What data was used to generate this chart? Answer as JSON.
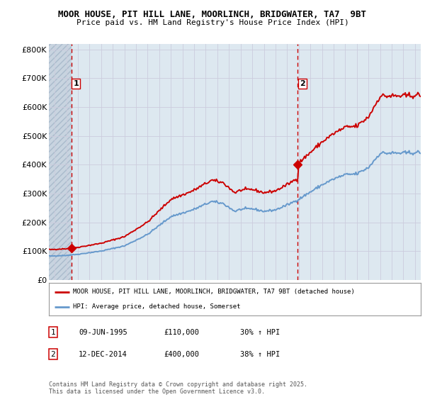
{
  "title": "MOOR HOUSE, PIT HILL LANE, MOORLINCH, BRIDGWATER, TA7  9BT",
  "subtitle": "Price paid vs. HM Land Registry's House Price Index (HPI)",
  "legend_label_red": "MOOR HOUSE, PIT HILL LANE, MOORLINCH, BRIDGWATER, TA7 9BT (detached house)",
  "legend_label_blue": "HPI: Average price, detached house, Somerset",
  "annotation1_label": "1",
  "annotation1_date": "09-JUN-1995",
  "annotation1_price": "£110,000",
  "annotation1_hpi": "30% ↑ HPI",
  "annotation2_label": "2",
  "annotation2_date": "12-DEC-2014",
  "annotation2_price": "£400,000",
  "annotation2_hpi": "38% ↑ HPI",
  "footnote": "Contains HM Land Registry data © Crown copyright and database right 2025.\nThis data is licensed under the Open Government Licence v3.0.",
  "purchase1_x": 1995.44,
  "purchase1_y": 110000,
  "purchase2_x": 2014.92,
  "purchase2_y": 400000,
  "xlim_left": 1993.5,
  "xlim_right": 2025.5,
  "ylim_bottom": 0,
  "ylim_top": 820000,
  "yticks": [
    0,
    100000,
    200000,
    300000,
    400000,
    500000,
    600000,
    700000,
    800000
  ],
  "ytick_labels": [
    "£0",
    "£100K",
    "£200K",
    "£300K",
    "£400K",
    "£500K",
    "£600K",
    "£700K",
    "£800K"
  ],
  "red_color": "#cc0000",
  "blue_color": "#6699cc",
  "grid_color": "#ccccdd",
  "bg_color": "#dde8f0",
  "hatch_bg": "#c8d4e0"
}
